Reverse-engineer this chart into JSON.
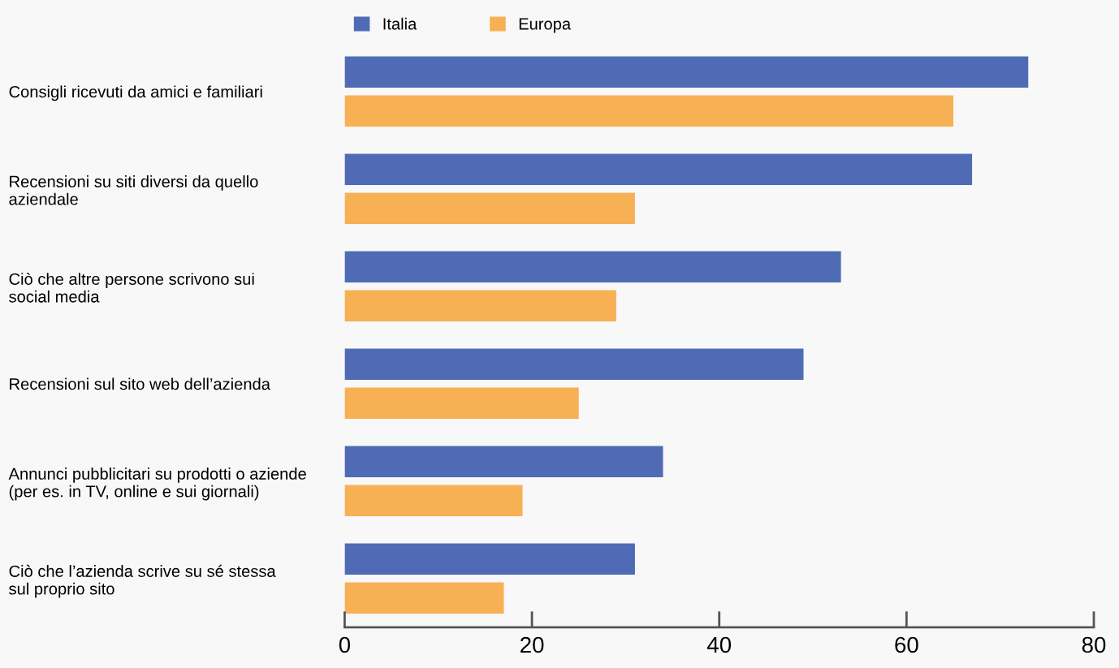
{
  "chart_data": {
    "type": "bar",
    "orientation": "horizontal",
    "categories": [
      "Consigli ricevuti da amici e familiari",
      "Recensioni su siti diversi da quello\naziendale",
      "Ciò che altre persone scrivono sui\nsocial media",
      "Recensioni sul sito web dell’azienda",
      "Annunci pubblicitari su prodotti o aziende\n(per es. in TV, online e sui giornali)",
      "Ciò che l’azienda scrive su sé stessa\nsul proprio sito"
    ],
    "series": [
      {
        "name": "Italia",
        "color": "#4f6bb5",
        "values": [
          73,
          67,
          53,
          49,
          34,
          31
        ]
      },
      {
        "name": "Europa",
        "color": "#f7b054",
        "values": [
          65,
          31,
          29,
          25,
          19,
          17
        ]
      }
    ],
    "xlim": [
      0,
      80
    ],
    "xticks": [
      0,
      20,
      40,
      60,
      80
    ],
    "grid": false,
    "legend": "top"
  }
}
